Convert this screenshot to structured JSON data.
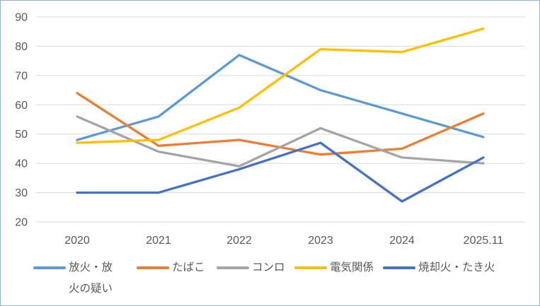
{
  "chart_data": {
    "type": "line",
    "title": "",
    "xlabel": "",
    "ylabel": "",
    "categories": [
      "2020",
      "2021",
      "2022",
      "2023",
      "2024",
      "2025.11"
    ],
    "series": [
      {
        "name": "放火・放火の疑い",
        "color": "#5B9BD5",
        "values": [
          48,
          56,
          77,
          65,
          57,
          49
        ]
      },
      {
        "name": "たばこ",
        "color": "#ED7D31",
        "values": [
          64,
          46,
          48,
          43,
          45,
          57
        ]
      },
      {
        "name": "コンロ",
        "color": "#A5A5A5",
        "values": [
          56,
          44,
          39,
          52,
          42,
          40
        ]
      },
      {
        "name": "電気関係",
        "color": "#FFC000",
        "values": [
          47,
          48,
          59,
          79,
          78,
          86
        ]
      },
      {
        "name": "焼却火・たき火",
        "color": "#4472C4",
        "values": [
          30,
          30,
          38,
          47,
          27,
          42
        ]
      }
    ],
    "ylim": [
      20,
      90
    ],
    "yticks": [
      90,
      80,
      70,
      60,
      50,
      40,
      30,
      20
    ],
    "grid": true,
    "legend_position": "bottom",
    "colors": {
      "gridline": "#D9D9D9",
      "axis_text": "#595959",
      "border": "#94B0D7",
      "background": "#FFFFFF"
    }
  }
}
